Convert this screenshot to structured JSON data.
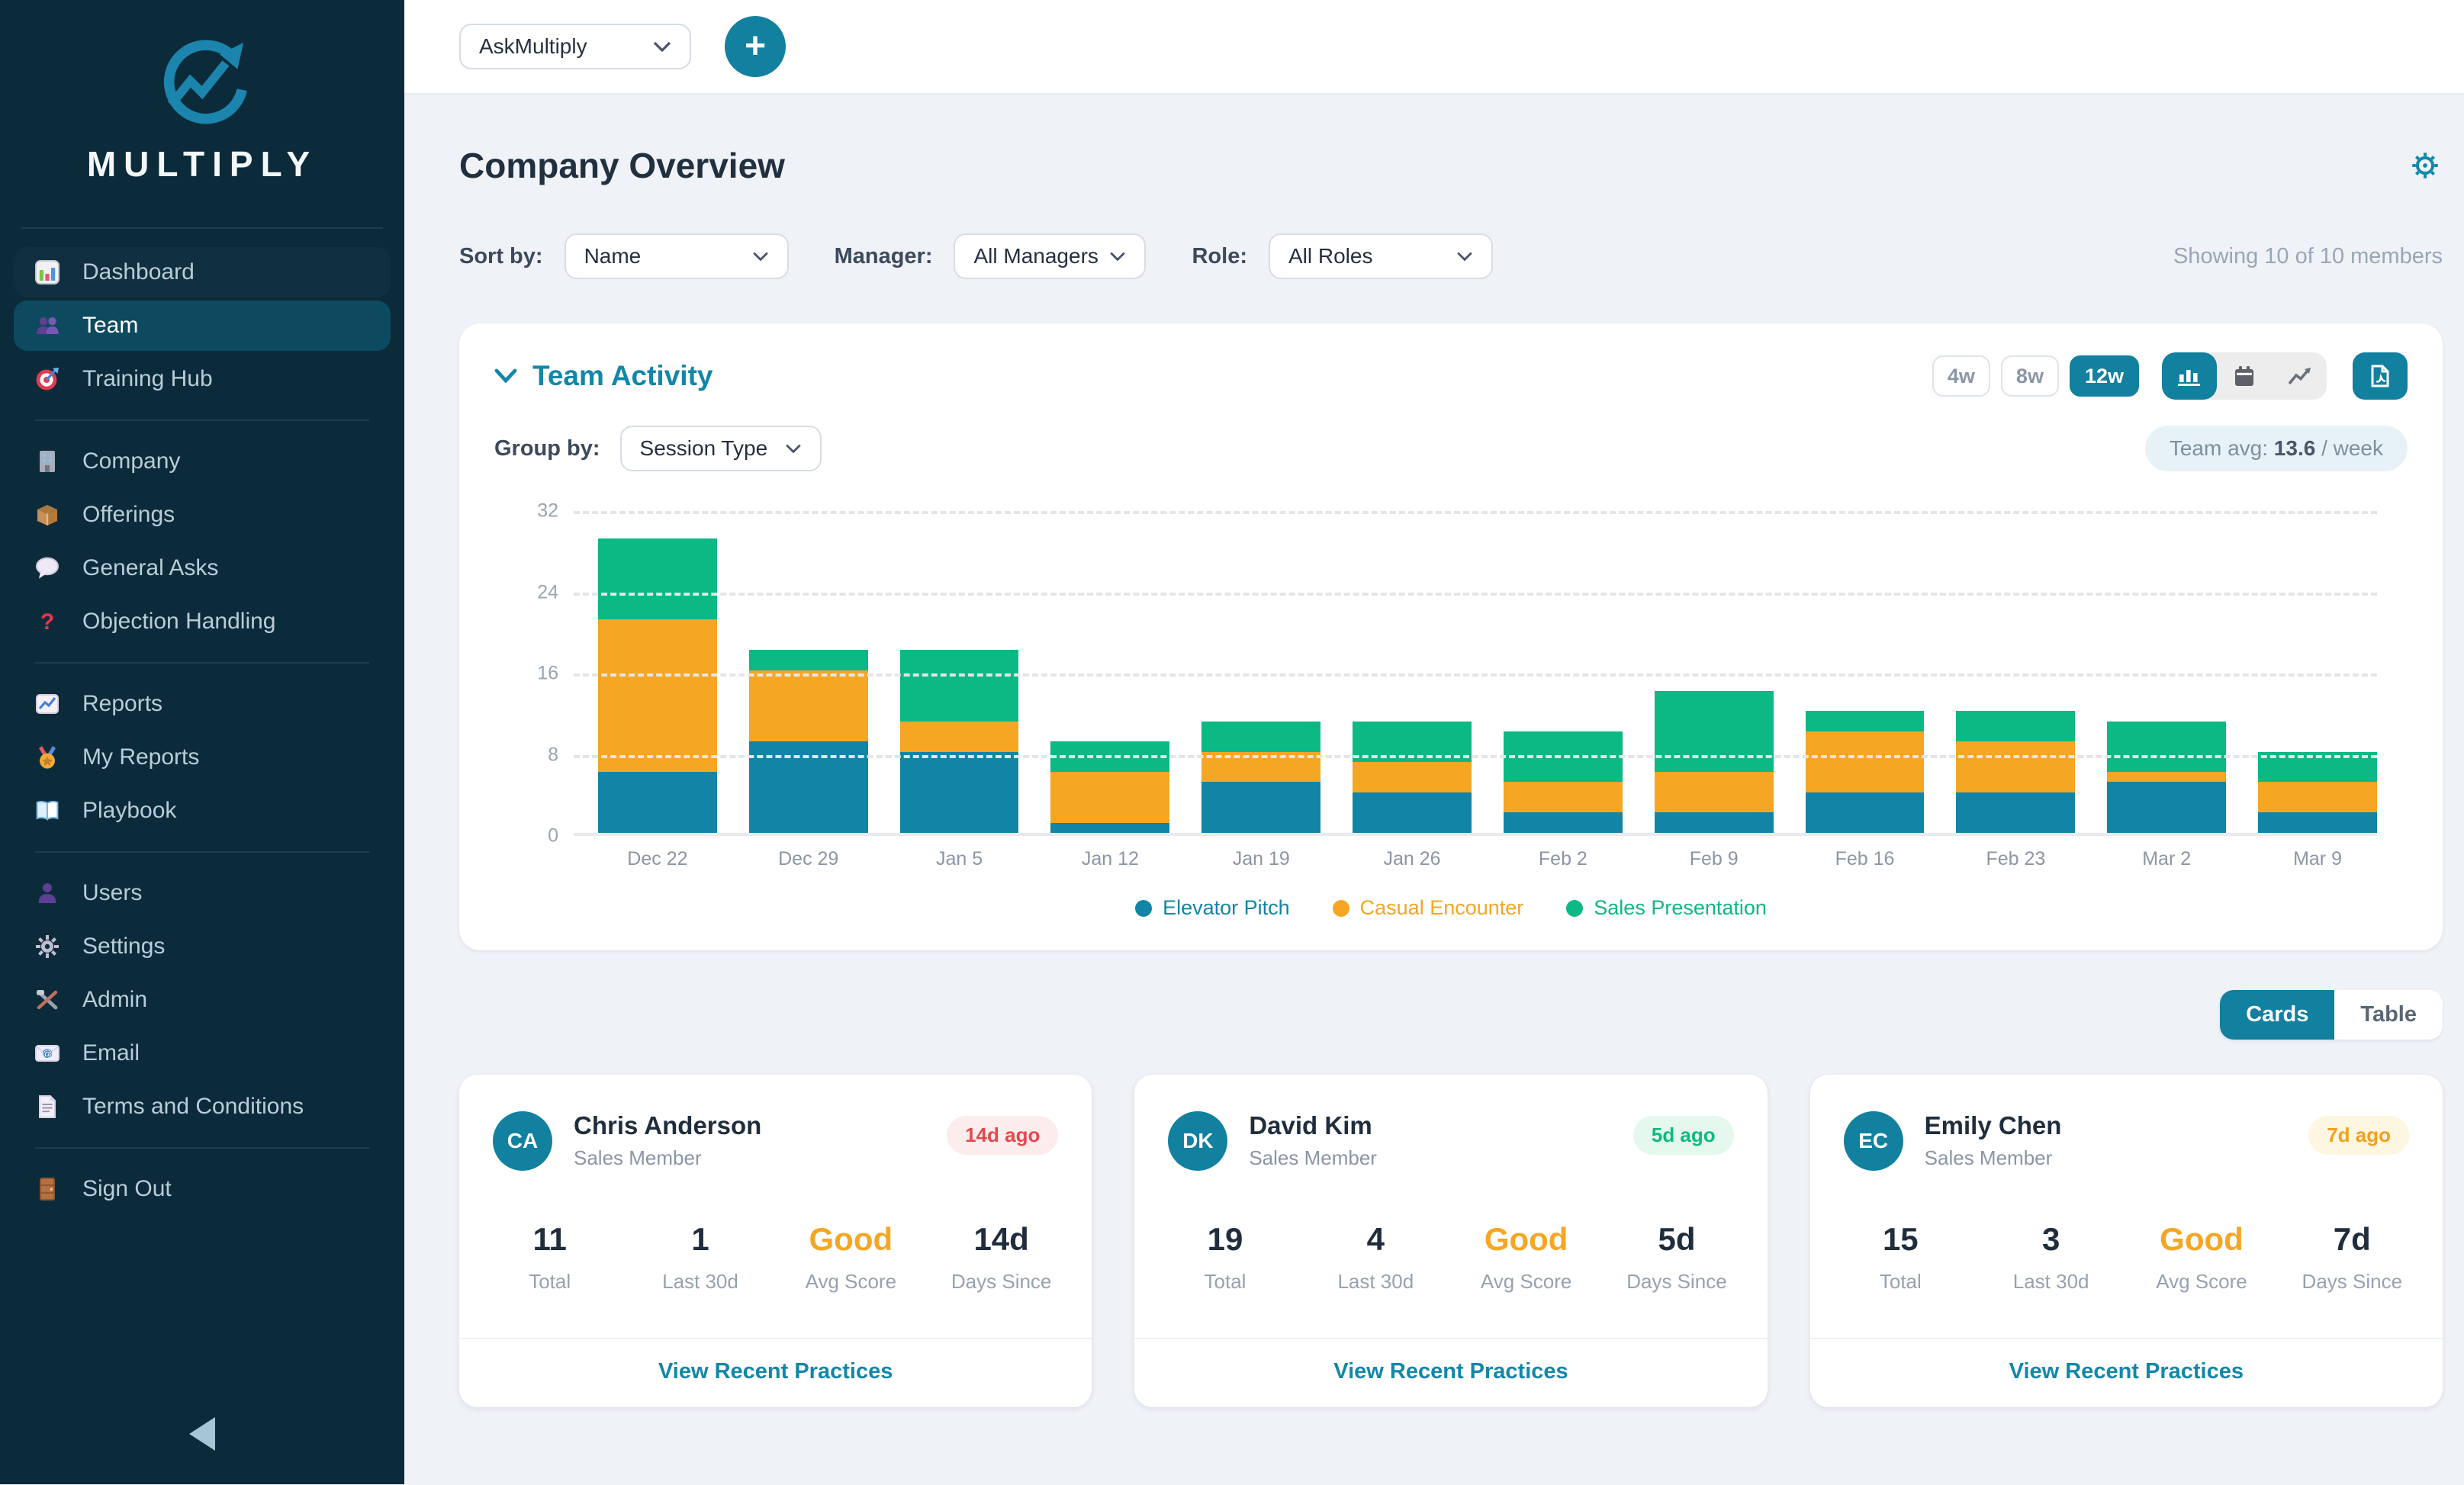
{
  "app": {
    "name": "MULTIPLY"
  },
  "colors": {
    "accent": "#12809F",
    "sidebar_bg": "#0C2B3A",
    "sidebar_active_bg": "#0D4A5F",
    "series_blue": "#1284A5",
    "series_orange": "#F5A623",
    "series_green": "#0CB884",
    "badge_red": "#E5484D",
    "badge_green": "#10B981",
    "badge_yellow": "#F0A11C"
  },
  "topbar": {
    "workspace": "AskMultiply",
    "add_label": "+"
  },
  "sidebar": {
    "groups": [
      {
        "items": [
          {
            "icon": "dashboard-icon",
            "label": "Dashboard"
          },
          {
            "icon": "team-icon",
            "label": "Team"
          },
          {
            "icon": "training-hub-icon",
            "label": "Training Hub"
          }
        ]
      },
      {
        "items": [
          {
            "icon": "company-icon",
            "label": "Company"
          },
          {
            "icon": "offerings-icon",
            "label": "Offerings"
          },
          {
            "icon": "general-asks-icon",
            "label": "General Asks"
          },
          {
            "icon": "objection-handling-icon",
            "label": "Objection Handling"
          }
        ]
      },
      {
        "items": [
          {
            "icon": "reports-icon",
            "label": "Reports"
          },
          {
            "icon": "my-reports-icon",
            "label": "My Reports"
          },
          {
            "icon": "playbook-icon",
            "label": "Playbook"
          }
        ]
      },
      {
        "items": [
          {
            "icon": "users-icon",
            "label": "Users"
          },
          {
            "icon": "settings-icon",
            "label": "Settings"
          },
          {
            "icon": "admin-icon",
            "label": "Admin"
          },
          {
            "icon": "email-icon",
            "label": "Email"
          },
          {
            "icon": "terms-icon",
            "label": "Terms and Conditions"
          }
        ]
      },
      {
        "items": [
          {
            "icon": "sign-out-icon",
            "label": "Sign Out"
          }
        ]
      }
    ]
  },
  "page": {
    "title": "Company Overview"
  },
  "filters": {
    "sort_by_label": "Sort by:",
    "sort_by_value": "Name",
    "manager_label": "Manager:",
    "manager_value": "All Managers",
    "role_label": "Role:",
    "role_value": "All Roles",
    "summary": "Showing 10 of 10 members"
  },
  "team_activity": {
    "title": "Team Activity",
    "ranges": [
      {
        "label": "4w",
        "active": false
      },
      {
        "label": "8w",
        "active": false
      },
      {
        "label": "12w",
        "active": true
      }
    ],
    "group_by_label": "Group by:",
    "group_by_value": "Session Type",
    "team_avg_label": "Team avg:",
    "team_avg_value": "13.6",
    "team_avg_suffix": " / week"
  },
  "chart_data": {
    "type": "bar",
    "stacked": true,
    "title": "Team Activity",
    "xlabel": "",
    "ylabel": "",
    "ylim": [
      0,
      32
    ],
    "yticks": [
      0,
      8,
      16,
      24,
      32
    ],
    "grid": "dashed-horizontal",
    "legend_position": "bottom",
    "categories": [
      "Dec 22",
      "Dec 29",
      "Jan 5",
      "Jan 12",
      "Jan 19",
      "Jan 26",
      "Feb 2",
      "Feb 9",
      "Feb 16",
      "Feb 23",
      "Mar 2",
      "Mar 9"
    ],
    "series": [
      {
        "name": "Elevator Pitch",
        "color": "#1284A5",
        "values": [
          6,
          9,
          8,
          1,
          5,
          4,
          2,
          2,
          4,
          4,
          5,
          2
        ]
      },
      {
        "name": "Casual Encounter",
        "color": "#F5A623",
        "values": [
          15,
          7,
          3,
          5,
          3,
          3,
          3,
          4,
          6,
          5,
          1,
          3
        ]
      },
      {
        "name": "Sales Presentation",
        "color": "#0CB884",
        "values": [
          8,
          2,
          7,
          3,
          3,
          4,
          5,
          8,
          2,
          3,
          5,
          3
        ]
      }
    ],
    "weekly_totals": [
      29,
      18,
      18,
      9,
      11,
      11,
      10,
      14,
      12,
      12,
      11,
      8
    ],
    "team_average_per_week": 13.6
  },
  "view_toggle": {
    "cards": "Cards",
    "table": "Table"
  },
  "members": {
    "stat_labels": [
      "Total",
      "Last 30d",
      "Avg Score",
      "Days Since"
    ],
    "action_label": "View Recent Practices",
    "cards": [
      {
        "initials": "CA",
        "name": "Chris Anderson",
        "role": "Sales Member",
        "badge": "14d ago",
        "badge_style": "red",
        "total": "11",
        "last_30d": "1",
        "avg_score": "Good",
        "days_since": "14d"
      },
      {
        "initials": "DK",
        "name": "David Kim",
        "role": "Sales Member",
        "badge": "5d ago",
        "badge_style": "green",
        "total": "19",
        "last_30d": "4",
        "avg_score": "Good",
        "days_since": "5d"
      },
      {
        "initials": "EC",
        "name": "Emily Chen",
        "role": "Sales Member",
        "badge": "7d ago",
        "badge_style": "yellow",
        "total": "15",
        "last_30d": "3",
        "avg_score": "Good",
        "days_since": "7d"
      }
    ]
  }
}
